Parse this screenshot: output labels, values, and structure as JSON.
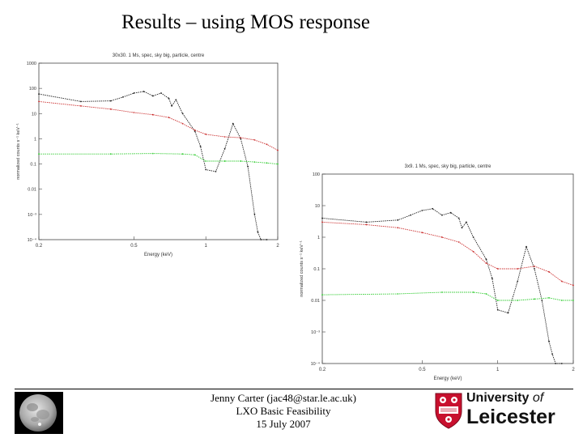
{
  "slide": {
    "title": "Results – using MOS response"
  },
  "footer": {
    "author": "Jenny Carter (jac48@star.le.ac.uk)",
    "project": "LXO Basic Feasibility",
    "date": "15 July 2007"
  },
  "logo": {
    "line1_main": "University",
    "line1_of": "of",
    "line2": "Leicester",
    "crest_color": "#c8102e"
  },
  "chart_data": [
    {
      "type": "line",
      "title": "30x30. 1 Ms, spec, sky big, particle, centre",
      "xlabel": "Energy (keV)",
      "ylabel": "normalized counts s⁻¹ keV⁻¹",
      "x_scale": "log",
      "y_scale": "log",
      "xlim": [
        0.2,
        2
      ],
      "ylim": [
        0.0001,
        1000
      ],
      "x_ticks": [
        "0.2",
        "0.5",
        "1",
        "2"
      ],
      "y_ticks": [
        "1000",
        "100",
        "10",
        "1",
        "0.1",
        "0.01",
        "10⁻³",
        "10⁻⁴"
      ],
      "series": [
        {
          "color": "#222222",
          "x": [
            0.2,
            0.3,
            0.4,
            0.45,
            0.5,
            0.55,
            0.6,
            0.65,
            0.7,
            0.72,
            0.75,
            0.8,
            0.9,
            0.95,
            1.0,
            1.1,
            1.2,
            1.3,
            1.4,
            1.5,
            1.6,
            1.65,
            1.7,
            1.8
          ],
          "y": [
            60,
            30,
            32,
            45,
            65,
            75,
            50,
            65,
            40,
            20,
            35,
            10,
            2,
            0.5,
            0.06,
            0.05,
            0.4,
            4,
            1,
            0.08,
            0.001,
            0.0002,
            0.0001,
            0.0001
          ]
        },
        {
          "color": "#cc3333",
          "x": [
            0.2,
            0.3,
            0.4,
            0.5,
            0.6,
            0.7,
            0.8,
            0.9,
            1.0,
            1.2,
            1.4,
            1.6,
            1.8,
            2.0
          ],
          "y": [
            30,
            20,
            15,
            11,
            9,
            7,
            4,
            2.2,
            1.5,
            1.2,
            1.1,
            0.9,
            0.6,
            0.35
          ]
        },
        {
          "color": "#33cc33",
          "x": [
            0.2,
            0.4,
            0.6,
            0.8,
            0.9,
            1.0,
            1.2,
            1.4,
            1.6,
            1.8,
            2.0
          ],
          "y": [
            0.25,
            0.25,
            0.26,
            0.25,
            0.23,
            0.13,
            0.13,
            0.13,
            0.12,
            0.11,
            0.1
          ]
        }
      ]
    },
    {
      "type": "line",
      "title": "3x9. 1 Ms, spec, sky big, particle, centre",
      "xlabel": "Energy (keV)",
      "ylabel": "normalized counts s⁻¹ keV⁻¹",
      "x_scale": "log",
      "y_scale": "log",
      "xlim": [
        0.2,
        2
      ],
      "ylim": [
        0.0001,
        100
      ],
      "x_ticks": [
        "0.2",
        "0.5",
        "1",
        "2"
      ],
      "y_ticks": [
        "100",
        "10",
        "1",
        "0.1",
        "0.01",
        "10⁻³",
        "10⁻⁴"
      ],
      "series": [
        {
          "color": "#222222",
          "x": [
            0.2,
            0.3,
            0.4,
            0.45,
            0.5,
            0.55,
            0.6,
            0.65,
            0.7,
            0.72,
            0.75,
            0.8,
            0.9,
            0.95,
            1.0,
            1.1,
            1.2,
            1.3,
            1.4,
            1.5,
            1.6,
            1.65,
            1.7,
            1.8
          ],
          "y": [
            4,
            3,
            3.5,
            5,
            7,
            8,
            5,
            6,
            4,
            2,
            3,
            1,
            0.2,
            0.05,
            0.005,
            0.004,
            0.04,
            0.5,
            0.1,
            0.01,
            0.0005,
            0.0002,
            0.0001,
            0.0001
          ]
        },
        {
          "color": "#cc3333",
          "x": [
            0.2,
            0.3,
            0.4,
            0.5,
            0.6,
            0.7,
            0.8,
            0.9,
            1.0,
            1.2,
            1.4,
            1.6,
            1.8,
            2.0
          ],
          "y": [
            3,
            2.5,
            2,
            1.4,
            1,
            0.7,
            0.35,
            0.15,
            0.1,
            0.1,
            0.12,
            0.08,
            0.04,
            0.03
          ]
        },
        {
          "color": "#33cc33",
          "x": [
            0.2,
            0.4,
            0.6,
            0.8,
            0.9,
            1.0,
            1.2,
            1.4,
            1.6,
            1.8,
            2.0
          ],
          "y": [
            0.015,
            0.016,
            0.018,
            0.018,
            0.016,
            0.01,
            0.01,
            0.011,
            0.012,
            0.01,
            0.01
          ]
        }
      ]
    }
  ]
}
